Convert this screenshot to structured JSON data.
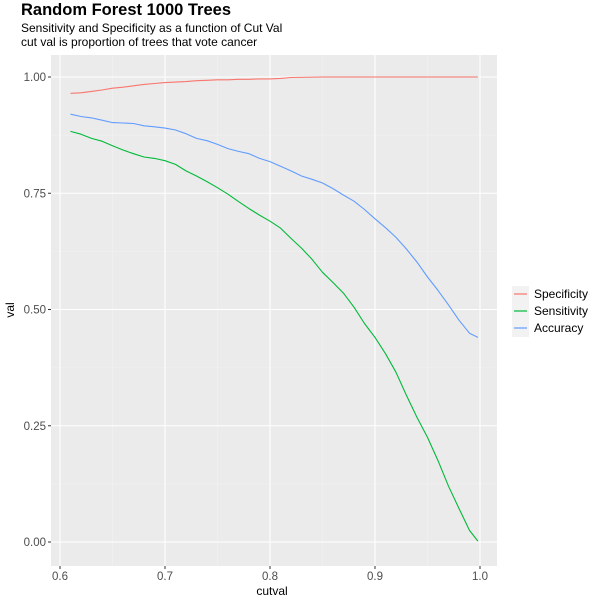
{
  "title": "Random Forest 1000 Trees",
  "subtitle_lines": [
    "Sensitivity and Specificity as a function of Cut Val",
    "cut val is proportion of trees that vote cancer"
  ],
  "chart_data": {
    "type": "line",
    "title": "Random Forest 1000 Trees",
    "subtitle": "Sensitivity and Specificity as a function of Cut Val\ncut val is proportion of trees that vote cancer",
    "xlabel": "cutval",
    "ylabel": "val",
    "xlim": [
      0.61,
      0.998
    ],
    "ylim": [
      0.0,
      1.0
    ],
    "x_ticks": [
      "0.6",
      "0.7",
      "0.8",
      "0.9",
      "1.0"
    ],
    "y_ticks": [
      "0.00",
      "0.25",
      "0.50",
      "0.75",
      "1.00"
    ],
    "grid": true,
    "background": "#ebebeb",
    "legend_position": "right",
    "series": [
      {
        "name": "Specificity",
        "color": "#f8766d",
        "x": [
          0.61,
          0.62,
          0.63,
          0.64,
          0.65,
          0.66,
          0.67,
          0.68,
          0.69,
          0.7,
          0.71,
          0.72,
          0.73,
          0.74,
          0.75,
          0.76,
          0.77,
          0.78,
          0.79,
          0.8,
          0.81,
          0.82,
          0.85,
          0.9,
          0.95,
          0.998
        ],
        "values": [
          0.965,
          0.966,
          0.969,
          0.972,
          0.976,
          0.978,
          0.981,
          0.984,
          0.986,
          0.988,
          0.989,
          0.99,
          0.992,
          0.993,
          0.994,
          0.994,
          0.995,
          0.995,
          0.996,
          0.996,
          0.997,
          0.999,
          1.0,
          1.0,
          1.0,
          1.0
        ]
      },
      {
        "name": "Sensitivity",
        "color": "#00ba38",
        "x": [
          0.61,
          0.62,
          0.63,
          0.64,
          0.65,
          0.66,
          0.67,
          0.68,
          0.69,
          0.7,
          0.71,
          0.72,
          0.73,
          0.74,
          0.75,
          0.76,
          0.77,
          0.78,
          0.79,
          0.8,
          0.81,
          0.82,
          0.83,
          0.84,
          0.85,
          0.86,
          0.87,
          0.88,
          0.89,
          0.9,
          0.91,
          0.92,
          0.93,
          0.94,
          0.95,
          0.96,
          0.97,
          0.98,
          0.99,
          0.998
        ],
        "values": [
          0.883,
          0.877,
          0.868,
          0.862,
          0.852,
          0.843,
          0.835,
          0.828,
          0.825,
          0.82,
          0.812,
          0.798,
          0.787,
          0.775,
          0.762,
          0.748,
          0.732,
          0.717,
          0.703,
          0.69,
          0.675,
          0.653,
          0.632,
          0.608,
          0.58,
          0.558,
          0.535,
          0.505,
          0.47,
          0.44,
          0.405,
          0.365,
          0.315,
          0.268,
          0.225,
          0.175,
          0.12,
          0.072,
          0.025,
          0.002
        ]
      },
      {
        "name": "Accuracy",
        "color": "#619cff",
        "x": [
          0.61,
          0.62,
          0.63,
          0.64,
          0.65,
          0.66,
          0.67,
          0.68,
          0.69,
          0.7,
          0.71,
          0.72,
          0.73,
          0.74,
          0.75,
          0.76,
          0.77,
          0.78,
          0.79,
          0.8,
          0.81,
          0.82,
          0.83,
          0.84,
          0.85,
          0.86,
          0.87,
          0.88,
          0.89,
          0.9,
          0.91,
          0.92,
          0.93,
          0.94,
          0.95,
          0.96,
          0.97,
          0.98,
          0.99,
          0.998
        ],
        "values": [
          0.92,
          0.915,
          0.912,
          0.907,
          0.902,
          0.901,
          0.9,
          0.895,
          0.893,
          0.89,
          0.886,
          0.878,
          0.868,
          0.863,
          0.855,
          0.846,
          0.84,
          0.835,
          0.825,
          0.818,
          0.808,
          0.798,
          0.787,
          0.78,
          0.772,
          0.76,
          0.746,
          0.733,
          0.715,
          0.695,
          0.676,
          0.655,
          0.63,
          0.602,
          0.57,
          0.541,
          0.51,
          0.477,
          0.449,
          0.44
        ]
      }
    ]
  }
}
